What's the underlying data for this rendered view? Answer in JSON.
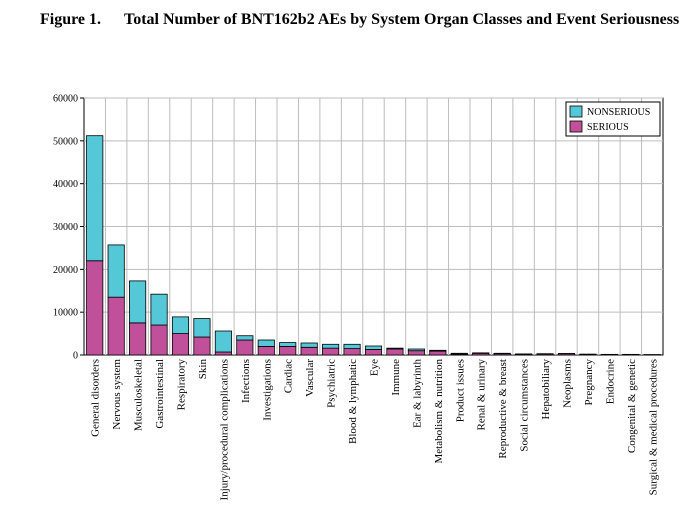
{
  "figure": {
    "label": "Figure 1.",
    "title": "Total Number of BNT162b2 AEs by System Organ Classes and Event Seriousness"
  },
  "chart_data": {
    "type": "bar",
    "stacked": true,
    "ylim": [
      0,
      60000
    ],
    "yticks": [
      0,
      10000,
      20000,
      30000,
      40000,
      50000,
      60000
    ],
    "ytick_labels": [
      "0",
      "10000",
      "20000",
      "30000",
      "40000",
      "50000",
      "60000"
    ],
    "grid": true,
    "legend_position": "top-right",
    "categories": [
      "General disorders",
      "Nervous system",
      "Musculoskeletal",
      "Gastrointestinal",
      "Respiratory",
      "Skin",
      "Injury/procedural complications",
      "Infections",
      "Investigations",
      "Cardiac",
      "Vascular",
      "Psychiatric",
      "Blood & lymphatic",
      "Eye",
      "Immune",
      "Ear & labyrinth",
      "Metabolism & nutrition",
      "Product issues",
      "Renal & urinary",
      "Reproductive & breast",
      "Social circumstances",
      "Hepatobiliary",
      "Neoplasms",
      "Pregnancy",
      "Endocrine",
      "Congenital & genetic",
      "Surgical & medical procedures"
    ],
    "series": [
      {
        "name": "SERIOUS",
        "color": "#c0509a",
        "values": [
          22000,
          13500,
          7500,
          7000,
          5000,
          4200,
          700,
          3500,
          2000,
          2000,
          1800,
          1600,
          1500,
          1300,
          1400,
          1000,
          900,
          200,
          400,
          300,
          200,
          250,
          300,
          150,
          100,
          100,
          50
        ]
      },
      {
        "name": "NONSERIOUS",
        "color": "#55c8d8",
        "values": [
          29200,
          12200,
          9800,
          7200,
          3900,
          4300,
          4900,
          1000,
          1500,
          900,
          1000,
          900,
          1000,
          800,
          200,
          400,
          200,
          200,
          100,
          100,
          50,
          50,
          50,
          50,
          50,
          50,
          50
        ]
      }
    ]
  }
}
